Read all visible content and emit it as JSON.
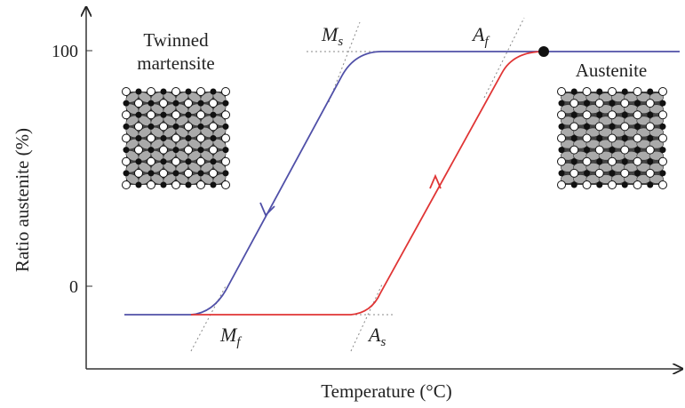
{
  "y_axis": {
    "label": "Ratio austenite (%)",
    "ticks": [
      "100",
      "0"
    ]
  },
  "x_axis": {
    "label": "Temperature (°C)"
  },
  "phases": {
    "left": [
      "Twinned",
      "martensite"
    ],
    "right": "Austenite"
  },
  "points": {
    "ms": {
      "main": "M",
      "sub": "s"
    },
    "mf": {
      "main": "M",
      "sub": "f"
    },
    "as": {
      "main": "A",
      "sub": "s"
    },
    "af": {
      "main": "A",
      "sub": "f"
    }
  }
}
